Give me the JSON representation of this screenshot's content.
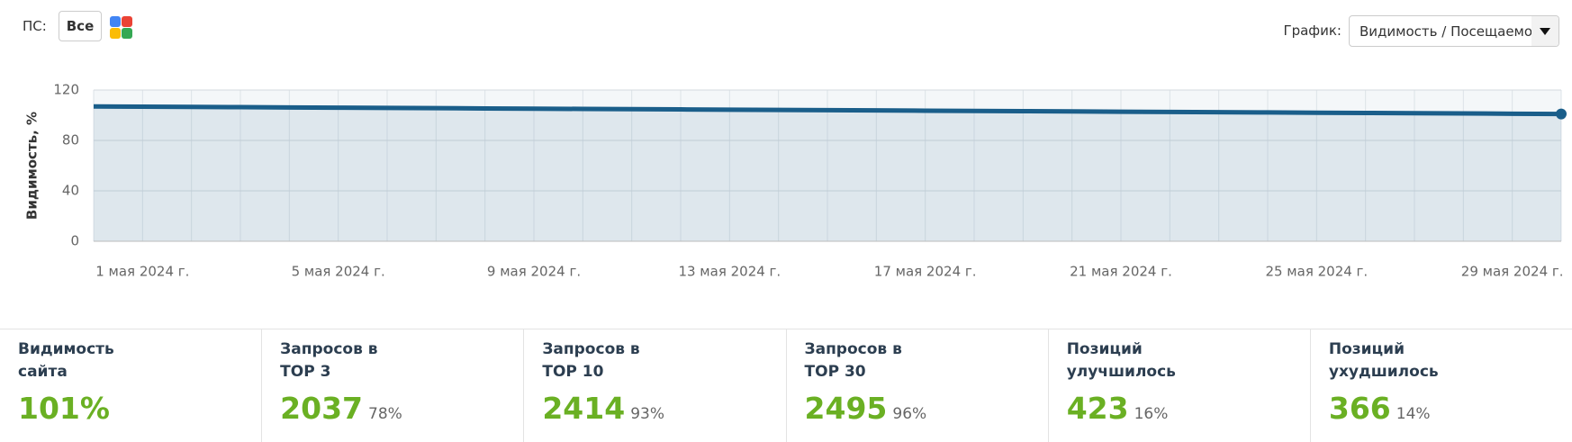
{
  "toolbar": {
    "ps_label": "ПС:",
    "ps_button": "Все",
    "graph_label": "График:",
    "graph_select": "Видимость / Посещаемость"
  },
  "chart_data": {
    "type": "line",
    "y_label": "Видимость, %",
    "categories": [
      null,
      "1 мая 2024 г.",
      null,
      null,
      null,
      "5 мая 2024 г.",
      null,
      null,
      null,
      "9 мая 2024 г.",
      null,
      null,
      null,
      "13 мая 2024 г.",
      null,
      null,
      null,
      "17 мая 2024 г.",
      null,
      null,
      null,
      "21 мая 2024 г.",
      null,
      null,
      null,
      "25 мая 2024 г.",
      null,
      null,
      null,
      "29 мая 2024 г.",
      null
    ],
    "series": [
      {
        "name": "Видимость",
        "color": "#1a5e8a",
        "values": [
          107,
          106.8,
          106.6,
          106.4,
          106.2,
          106,
          105.8,
          105.6,
          105.4,
          105.2,
          105,
          104.8,
          104.6,
          104.4,
          104.2,
          104,
          103.8,
          103.6,
          103.4,
          103.2,
          103,
          102.8,
          102.6,
          102.4,
          102.2,
          102,
          101.8,
          101.6,
          101.4,
          101.2,
          101
        ]
      }
    ],
    "ylim": [
      0,
      120
    ],
    "yticks": [
      0,
      40,
      80,
      120
    ],
    "grid": true
  },
  "stats": [
    {
      "label": [
        "Видимость",
        "сайта"
      ],
      "value": "101%"
    },
    {
      "label": [
        "Запросов в",
        "TOP 3"
      ],
      "value": "2037",
      "share": "78%"
    },
    {
      "label": [
        "Запросов в",
        "TOP 10"
      ],
      "value": "2414",
      "share": "93%"
    },
    {
      "label": [
        "Запросов в",
        "TOP 30"
      ],
      "value": "2495",
      "share": "96%"
    },
    {
      "label": [
        "Позиций",
        "улучшилось"
      ],
      "value": "423",
      "share": "16%"
    },
    {
      "label": [
        "Позиций",
        "ухудшилось"
      ],
      "value": "366",
      "share": "14%"
    }
  ]
}
